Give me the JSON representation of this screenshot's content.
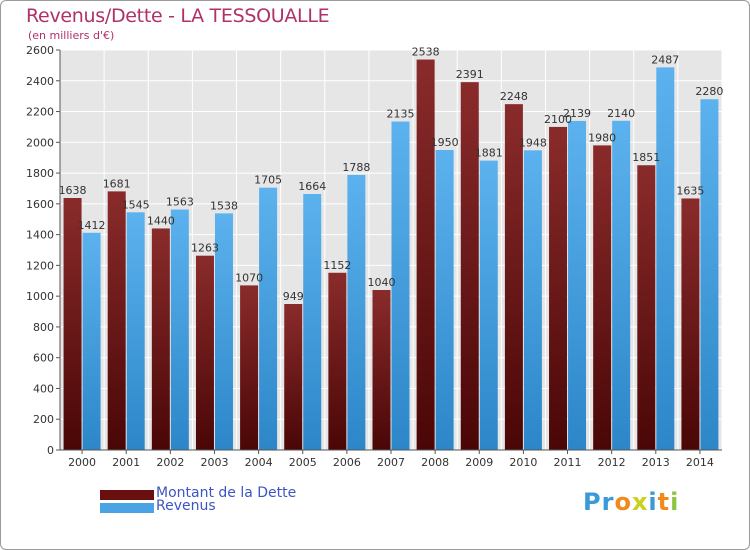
{
  "chart_data": {
    "type": "bar",
    "title": "Revenus/Dette - LA TESSOUALLE",
    "subtitle": "(en milliers d'€)",
    "categories": [
      "2000",
      "2001",
      "2002",
      "2003",
      "2004",
      "2005",
      "2006",
      "2007",
      "2008",
      "2009",
      "2010",
      "2011",
      "2012",
      "2013",
      "2014"
    ],
    "series": [
      {
        "name": "Montant de la Dette",
        "color": "#7a1a1a",
        "values": [
          1638,
          1681,
          1440,
          1263,
          1070,
          949,
          1152,
          1040,
          2538,
          2391,
          2248,
          2100,
          1980,
          1851,
          1635
        ]
      },
      {
        "name": "Revenus",
        "color": "#4aa3e4",
        "values": [
          1412,
          1545,
          1563,
          1538,
          1705,
          1664,
          1788,
          2135,
          1950,
          1881,
          1948,
          2139,
          2140,
          2487,
          2280
        ]
      }
    ],
    "data_labels": {
      "Montant de la Dette": [
        "1638",
        "1681",
        "1440",
        "1263",
        "1070",
        "949",
        "1152",
        "1040",
        "2538",
        "2391",
        "2248",
        "2100",
        "1980",
        "1851",
        "1635"
      ],
      "Revenus": [
        "1412",
        "1545",
        "1563",
        "1538",
        "1705",
        "1664",
        "1788",
        "2135",
        "1950",
        "1881",
        "1948",
        "2139",
        "2140",
        "2487",
        "2280"
      ]
    },
    "yticks": [
      "0",
      "200",
      "400",
      "600",
      "800",
      "1000",
      "1200",
      "1400",
      "1600",
      "1800",
      "2000",
      "2200",
      "2400",
      "2600"
    ],
    "ylim": [
      0,
      2600
    ],
    "grid": true,
    "legend_position": "bottom-left"
  },
  "legend": [
    {
      "label": "Montant de la Dette",
      "color": "#6a0f0f"
    },
    {
      "label": "Revenus",
      "color": "#4aa3e4"
    }
  ],
  "logo": {
    "letters": [
      "P",
      "r",
      "o",
      "x",
      "i",
      "t",
      "i"
    ],
    "colors": [
      "#3a9ad9",
      "#3a9ad9",
      "#f08a1a",
      "#c8d21a",
      "#3a9ad9",
      "#f08a1a",
      "#8cc63f"
    ]
  }
}
